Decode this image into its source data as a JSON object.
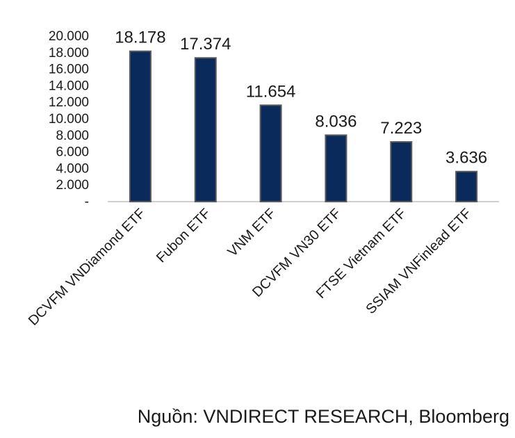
{
  "chart_data": {
    "type": "bar",
    "categories": [
      "DCVFM VNDiamond ETF",
      "Fubon ETF",
      "VNM ETF",
      "DCVFM VN30 ETF",
      "FTSE Vietnam ETF",
      "SSIAM VNFinlead ETF"
    ],
    "values": [
      18178,
      17374,
      11654,
      8036,
      7223,
      3636
    ],
    "data_labels": [
      "18.178",
      "17.374",
      "11.654",
      "8.036",
      "7.223",
      "3.636"
    ],
    "ylim": [
      0,
      20000
    ],
    "yticks": [
      0,
      2000,
      4000,
      6000,
      8000,
      10000,
      12000,
      14000,
      16000,
      18000,
      20000
    ],
    "ytick_labels": [
      "-",
      "2.000",
      "4.000",
      "6.000",
      "8.000",
      "10.000",
      "12.000",
      "14.000",
      "16.000",
      "18.000",
      "20.000"
    ],
    "bar_color": "#0b2a5c",
    "bar_edge_color": "#5a5a5a",
    "grid": false,
    "legend": "none"
  },
  "source_text": "Nguồn: VNDIRECT RESEARCH, Bloomberg"
}
